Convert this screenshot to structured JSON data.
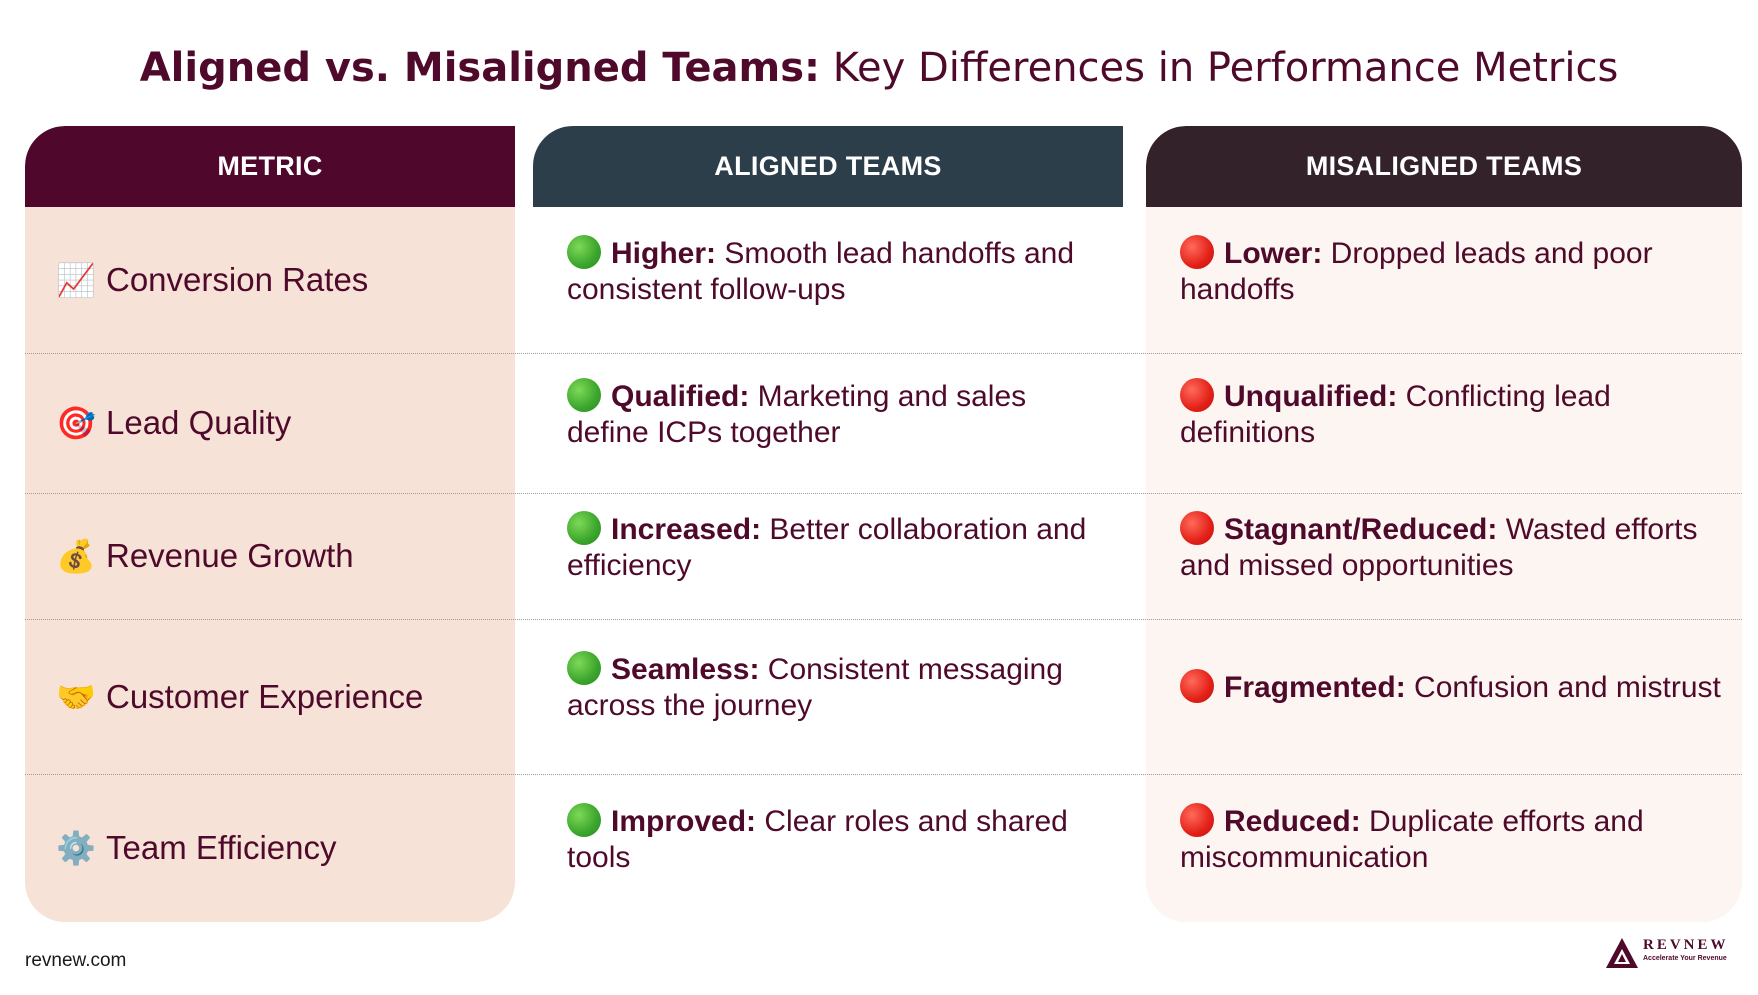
{
  "title": {
    "bold": "Aligned vs. Misaligned Teams:",
    "rest": " Key Differences in Performance Metrics"
  },
  "headers": {
    "metric": "METRIC",
    "aligned": "ALIGNED TEAMS",
    "misaligned": "MISALIGNED TEAMS"
  },
  "colors": {
    "brand": "#4f0a2b",
    "metric_header": "#4f082c",
    "aligned_header": "#2c3e4a",
    "misaligned_header": "#33222a",
    "metric_bg": "#f7e2d8",
    "misaligned_bg": "#fcf5f1",
    "good_dot": "#3aa52c",
    "bad_dot": "#e32018"
  },
  "rows": [
    {
      "icon": "chart-increasing-icon",
      "emoji": "📈",
      "metric": "Conversion Rates",
      "aligned_label": "Higher:",
      "aligned_text": " Smooth lead handoffs and consistent follow-ups",
      "misaligned_label": "Lower:",
      "misaligned_text": " Dropped leads and poor handoffs"
    },
    {
      "icon": "target-icon",
      "emoji": "🎯",
      "metric": "Lead Quality",
      "aligned_label": "Qualified:",
      "aligned_text": " Marketing and sales define ICPs together",
      "misaligned_label": "Unqualified:",
      "misaligned_text": " Conflicting lead definitions"
    },
    {
      "icon": "money-bag-icon",
      "emoji": "💰",
      "metric": "Revenue Growth",
      "aligned_label": "Increased:",
      "aligned_text": " Better collaboration and efficiency",
      "misaligned_label": "Stagnant/Reduced:",
      "misaligned_text": " Wasted efforts and missed opportunities"
    },
    {
      "icon": "handshake-icon",
      "emoji": "🤝",
      "metric": "Customer Experience",
      "aligned_label": "Seamless:",
      "aligned_text": " Consistent messaging across the journey",
      "misaligned_label": "Fragmented:",
      "misaligned_text": " Confusion and mistrust"
    },
    {
      "icon": "gear-icon",
      "emoji": "⚙️",
      "metric": "Team Efficiency",
      "aligned_label": "Improved:",
      "aligned_text": " Clear roles and shared tools",
      "misaligned_label": "Reduced:",
      "misaligned_text": " Duplicate efforts and miscommunication"
    }
  ],
  "footer": {
    "url": "revnew.com",
    "logo_name": "REVNEW",
    "logo_tagline": "Accelerate Your Revenue"
  }
}
